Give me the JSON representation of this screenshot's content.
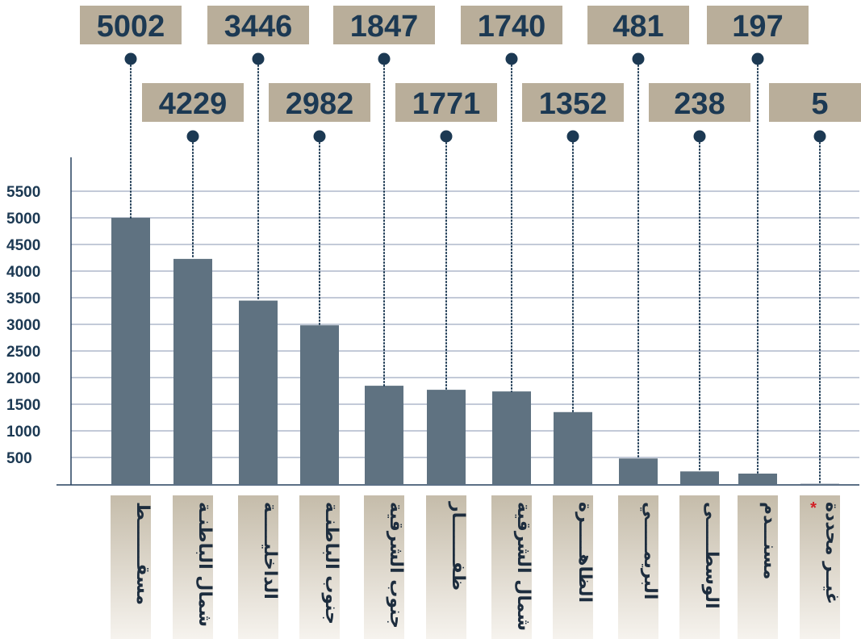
{
  "chart_data": {
    "type": "bar",
    "categories": [
      "مسقـــــــط",
      "شمال الباطنـة",
      "الداخليـــــة",
      "جنوب الباطنـة",
      "جنوب الشرقية",
      "ظفـــــــار",
      "شمال الشرقية",
      "الظاهـــــرة",
      "البريمـــــي",
      "الوسطـــــى",
      "مسنـــدم",
      "غيــر محددة"
    ],
    "values": [
      5002,
      4229,
      3446,
      2982,
      1847,
      1771,
      1740,
      1352,
      481,
      238,
      197,
      5
    ],
    "value_labels": [
      "5002",
      "4229",
      "3446",
      "2982",
      "1847",
      "1771",
      "1740",
      "1352",
      "481",
      "238",
      "197",
      "5"
    ],
    "footnote_marker": "*",
    "footnote_category_index": 11,
    "yticks": [
      "500",
      "1000",
      "1500",
      "2000",
      "2500",
      "3000",
      "3500",
      "4000",
      "4500",
      "5000",
      "5500"
    ],
    "ylim": [
      0,
      5500
    ],
    "grid": true,
    "title": "",
    "xlabel": "",
    "ylabel": "",
    "colors": {
      "bar": "#5f7281",
      "grid": "#8795b0",
      "axis": "#26405f",
      "value_box": "#b9ae9a",
      "value_text": "#1c3953",
      "dot": "#1c3953",
      "tick_text": "#1c3953",
      "category_text": "#1d2d3e",
      "category_bg_top": "#c5bcaa",
      "category_bg_bottom": "#f6f3ee",
      "marker": "#d21f26"
    }
  }
}
